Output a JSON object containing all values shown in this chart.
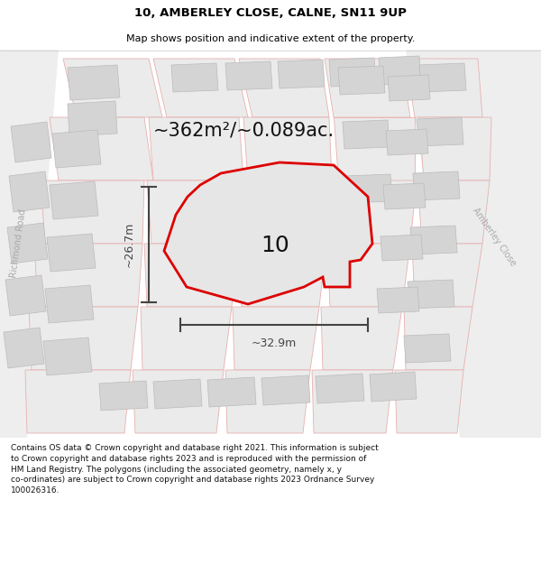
{
  "title_line1": "10, AMBERLEY CLOSE, CALNE, SN11 9UP",
  "title_line2": "Map shows position and indicative extent of the property.",
  "area_text": "~362m²/~0.089ac.",
  "label_number": "10",
  "dim_height": "~26.7m",
  "dim_width": "~32.9m",
  "road_label_left": "Richmond Road",
  "road_label_right": "Amberley Close",
  "footer_line1": "Contains OS data © Crown copyright and database right 2021. This information is subject",
  "footer_line2": "to Crown copyright and database rights 2023 and is reproduced with the permission of",
  "footer_line3": "HM Land Registry. The polygons (including the associated geometry, namely x, y",
  "footer_line4": "co-ordinates) are subject to Crown copyright and database rights 2023 Ordnance Survey",
  "footer_line5": "100026316.",
  "bg_color": "#f0f0f0",
  "plot_color": "#dd0000",
  "plot_fill": "#e8e8e8",
  "dim_color": "#444444",
  "bld_fill": "#d4d4d4",
  "bld_edge": "#e0a0a0",
  "parcel_edge": "#e8b0b0",
  "road_label_color": "#aaaaaa"
}
